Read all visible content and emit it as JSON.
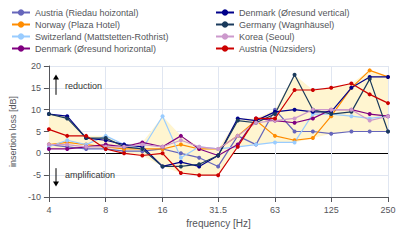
{
  "chart_data": {
    "type": "line",
    "xlabel": "frequency [Hz]",
    "ylabel": "insertion loss [dB]",
    "log": "x",
    "grid": true,
    "legend": "top",
    "marker": "circle",
    "xlim": [
      4,
      250
    ],
    "xticks": [
      4,
      8,
      16,
      31.5,
      63,
      125,
      250
    ],
    "ylim": [
      -10,
      20
    ],
    "yticks": [
      -10,
      -5,
      0,
      5,
      10,
      15,
      20
    ],
    "x": [
      4,
      5,
      6.3,
      8,
      10,
      12.5,
      16,
      20,
      25,
      31.5,
      40,
      50,
      63,
      80,
      100,
      125,
      160,
      200,
      250
    ],
    "series": [
      {
        "name": "Austria (Riedau hoizontal)",
        "color": "#6666bb",
        "values": [
          2,
          1.5,
          1,
          1,
          0.5,
          0.5,
          1,
          0,
          -1,
          -3,
          4,
          2,
          10,
          5,
          5,
          4.5,
          5,
          5,
          5
        ]
      },
      {
        "name": "Norway (Plaza Hotel)",
        "color": "#ff8c00",
        "values": [
          2,
          2.5,
          2,
          1.5,
          1,
          1,
          1,
          2,
          1,
          1,
          4,
          7.5,
          4,
          3,
          3.5,
          8.5,
          15,
          19,
          17.5
        ]
      },
      {
        "name": "Switzerland (Mattstetten-Rothrist)",
        "color": "#99ccff",
        "values": [
          1.5,
          3,
          2,
          4,
          2,
          1,
          8.5,
          -1,
          1.5,
          1,
          1.5,
          2,
          2.5,
          2.5,
          9,
          9,
          8.5,
          8,
          8.5
        ]
      },
      {
        "name": "Denmark (Øresund horizontal)",
        "color": "#800080",
        "values": [
          1,
          1,
          1.5,
          2,
          1.5,
          2.5,
          1.5,
          4,
          1,
          -0.5,
          2,
          8,
          7.5,
          7,
          8,
          10,
          10,
          9,
          8.5
        ]
      },
      {
        "name": "Denmark (Øresund vertical)",
        "color": "#00008b",
        "values": [
          9,
          8.5,
          3.5,
          3,
          2,
          1.5,
          -3,
          -2,
          -3,
          -0.5,
          8,
          7.5,
          9.5,
          10,
          9.5,
          9.5,
          15,
          17.5,
          17.5
        ]
      },
      {
        "name": "Germany (Wagnhäusel)",
        "color": "#1a3a5c",
        "values": [
          9,
          8,
          3.5,
          3.5,
          1.5,
          1,
          -3,
          -3,
          -2.5,
          -0.5,
          7.5,
          7,
          9,
          18,
          10,
          9,
          9.5,
          17,
          5
        ]
      },
      {
        "name": "Korea (Seoul)",
        "color": "#cc99cc",
        "values": [
          2,
          2,
          1.5,
          1.5,
          1.5,
          2,
          1.5,
          3,
          1.5,
          1,
          4,
          7,
          7.5,
          8,
          10,
          10,
          10,
          7.5,
          8.5
        ]
      },
      {
        "name": "Austria (Nüzsiders)",
        "color": "#cc0000",
        "values": [
          5.5,
          4,
          4,
          1,
          0,
          -0.5,
          0,
          -4.5,
          -5,
          -5,
          1.5,
          8,
          8,
          14.5,
          14.5,
          15,
          16,
          13.5,
          11.5
        ]
      }
    ],
    "envelope": {
      "color": "#fff5d0"
    },
    "annotations": [
      "reduction",
      "amplification"
    ]
  }
}
